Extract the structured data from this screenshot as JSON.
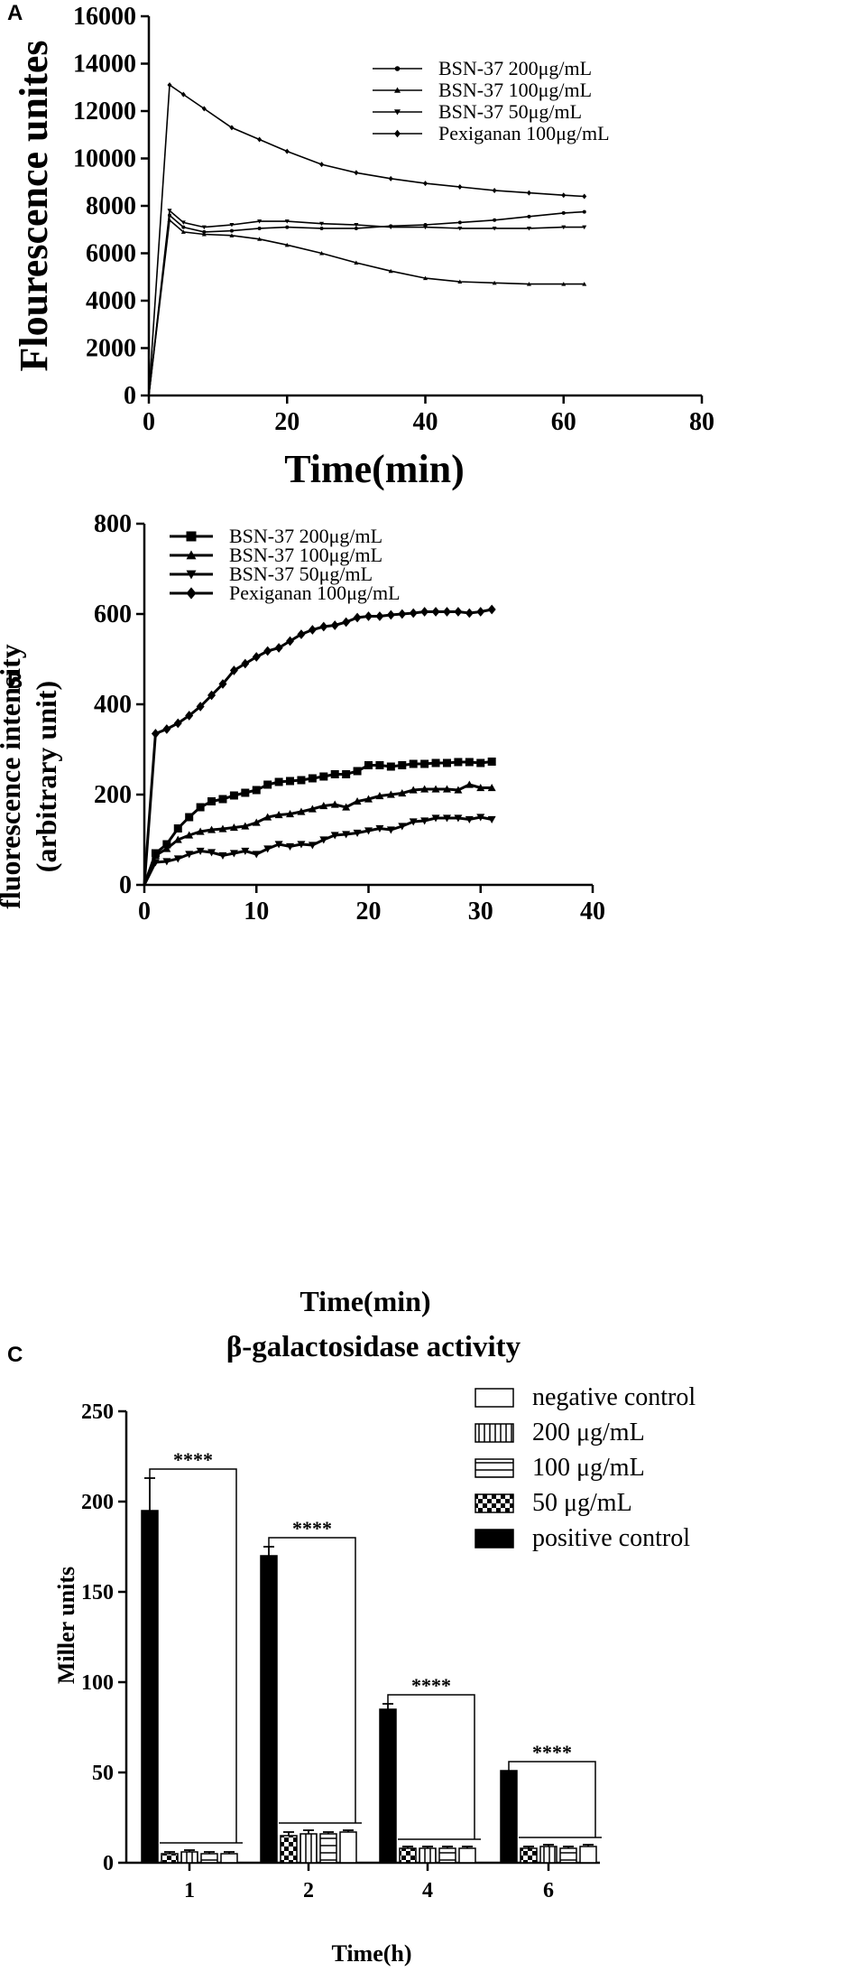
{
  "chart_data": [
    {
      "panel": "A",
      "type": "line",
      "xlabel": "Time(min)",
      "ylabel": "Flourescence  unites",
      "xlim": [
        0,
        80
      ],
      "ylim": [
        0,
        16000
      ],
      "xticks": [
        0,
        20,
        40,
        60,
        80
      ],
      "yticks": [
        0,
        2000,
        4000,
        6000,
        8000,
        10000,
        12000,
        14000,
        16000
      ],
      "legend_position": "top-right",
      "series": [
        {
          "name": "BSN-37 200μg/mL",
          "marker": "circle",
          "x": [
            0,
            3,
            5,
            8,
            12,
            16,
            20,
            25,
            30,
            35,
            40,
            45,
            50,
            55,
            60,
            63
          ],
          "values": [
            0,
            7600,
            7100,
            6900,
            6950,
            7050,
            7100,
            7050,
            7050,
            7150,
            7200,
            7300,
            7400,
            7550,
            7700,
            7750
          ]
        },
        {
          "name": "BSN-37 100μg/mL",
          "marker": "triangle",
          "x": [
            0,
            3,
            5,
            8,
            12,
            16,
            20,
            25,
            30,
            35,
            40,
            45,
            50,
            55,
            60,
            63
          ],
          "values": [
            0,
            7400,
            6900,
            6800,
            6750,
            6600,
            6350,
            6000,
            5600,
            5250,
            4950,
            4800,
            4750,
            4700,
            4700,
            4700
          ]
        },
        {
          "name": "BSN-37 50μg/mL",
          "marker": "triangle-down",
          "x": [
            0,
            3,
            5,
            8,
            12,
            16,
            20,
            25,
            30,
            35,
            40,
            45,
            50,
            55,
            60,
            63
          ],
          "values": [
            0,
            7800,
            7300,
            7100,
            7200,
            7350,
            7350,
            7250,
            7200,
            7100,
            7100,
            7050,
            7050,
            7050,
            7100,
            7100
          ]
        },
        {
          "name": "Pexiganan 100μg/mL",
          "marker": "diamond",
          "x": [
            0,
            3,
            5,
            8,
            12,
            16,
            20,
            25,
            30,
            35,
            40,
            45,
            50,
            55,
            60,
            63
          ],
          "values": [
            0,
            13100,
            12700,
            12100,
            11300,
            10800,
            10300,
            9750,
            9400,
            9150,
            8950,
            8800,
            8650,
            8550,
            8450,
            8400
          ]
        }
      ]
    },
    {
      "panel": "B",
      "type": "line",
      "xlabel": "Time(min)",
      "ylabel_line1": "fluorescence  intensity",
      "ylabel_line2": "(arbitrary  unit)",
      "xlim": [
        0,
        40
      ],
      "ylim": [
        0,
        800
      ],
      "xticks": [
        0,
        10,
        20,
        30,
        40
      ],
      "yticks": [
        0,
        200,
        400,
        600,
        800
      ],
      "legend_position": "top-left",
      "series": [
        {
          "name": "BSN-37 200μg/mL",
          "marker": "square",
          "x": [
            0,
            1,
            2,
            3,
            4,
            5,
            6,
            7,
            8,
            9,
            10,
            11,
            12,
            13,
            14,
            15,
            16,
            17,
            18,
            19,
            20,
            21,
            22,
            23,
            24,
            25,
            26,
            27,
            28,
            29,
            30,
            31
          ],
          "values": [
            0,
            70,
            90,
            125,
            150,
            172,
            185,
            190,
            198,
            204,
            210,
            222,
            228,
            230,
            232,
            236,
            240,
            245,
            245,
            252,
            265,
            265,
            262,
            265,
            268,
            268,
            270,
            270,
            272,
            272,
            270,
            273
          ]
        },
        {
          "name": "BSN-37 100μg/mL",
          "marker": "triangle",
          "x": [
            0,
            1,
            2,
            3,
            4,
            5,
            6,
            7,
            8,
            9,
            10,
            11,
            12,
            13,
            14,
            15,
            16,
            17,
            18,
            19,
            20,
            21,
            22,
            23,
            24,
            25,
            26,
            27,
            28,
            29,
            30,
            31
          ],
          "values": [
            0,
            65,
            80,
            100,
            110,
            118,
            122,
            124,
            127,
            130,
            138,
            150,
            155,
            157,
            162,
            168,
            175,
            178,
            172,
            185,
            190,
            197,
            200,
            203,
            210,
            212,
            212,
            212,
            210,
            222,
            215,
            215
          ]
        },
        {
          "name": "BSN-37 50μg/mL",
          "marker": "triangle-down",
          "x": [
            0,
            1,
            2,
            3,
            4,
            5,
            6,
            7,
            8,
            9,
            10,
            11,
            12,
            13,
            14,
            15,
            16,
            17,
            18,
            19,
            20,
            21,
            22,
            23,
            24,
            25,
            26,
            27,
            28,
            29,
            30,
            31
          ],
          "values": [
            0,
            50,
            52,
            58,
            68,
            75,
            72,
            65,
            70,
            75,
            68,
            80,
            90,
            85,
            90,
            88,
            100,
            110,
            112,
            115,
            120,
            125,
            122,
            130,
            140,
            142,
            148,
            148,
            148,
            145,
            150,
            145
          ]
        },
        {
          "name": "Pexiganan 100μg/mL",
          "marker": "diamond",
          "x": [
            0,
            1,
            2,
            3,
            4,
            5,
            6,
            7,
            8,
            9,
            10,
            11,
            12,
            13,
            14,
            15,
            16,
            17,
            18,
            19,
            20,
            21,
            22,
            23,
            24,
            25,
            26,
            27,
            28,
            29,
            30,
            31
          ],
          "values": [
            0,
            335,
            345,
            358,
            375,
            395,
            420,
            445,
            475,
            490,
            505,
            518,
            525,
            540,
            555,
            565,
            572,
            575,
            582,
            592,
            595,
            595,
            598,
            600,
            602,
            605,
            605,
            605,
            605,
            602,
            605,
            610
          ]
        }
      ]
    },
    {
      "panel": "C",
      "type": "bar",
      "title": "β-galactosidase activity",
      "xlabel": "Time(h)",
      "ylabel": "Miller units",
      "ylim": [
        0,
        250
      ],
      "yticks": [
        0,
        50,
        100,
        150,
        200,
        250
      ],
      "categories": [
        "1",
        "2",
        "4",
        "6"
      ],
      "legend_position": "top-right",
      "significance_label": "****",
      "series": [
        {
          "name": "positive control",
          "pattern": "solid",
          "values": [
            195,
            170,
            85,
            51
          ],
          "errors": [
            18,
            5,
            3,
            0
          ]
        },
        {
          "name": "50 μg/mL",
          "pattern": "checker",
          "values": [
            5,
            15,
            8,
            8
          ],
          "errors": [
            1,
            2,
            1,
            1
          ]
        },
        {
          "name": "200 μg/mL",
          "pattern": "vertical",
          "values": [
            6,
            16,
            8,
            9
          ],
          "errors": [
            1,
            2,
            1,
            1
          ]
        },
        {
          "name": "100 μg/mL",
          "pattern": "horizontal",
          "values": [
            5,
            16,
            8,
            8
          ],
          "errors": [
            1,
            1,
            1,
            1
          ]
        },
        {
          "name": "negative control",
          "pattern": "empty",
          "values": [
            5,
            17,
            8,
            9
          ],
          "errors": [
            1,
            1,
            1,
            1
          ]
        }
      ],
      "legend_order": [
        "negative control",
        "200 μg/mL",
        "100 μg/mL",
        "50 μg/mL",
        "positive control"
      ]
    }
  ],
  "panel_labels": [
    "A",
    "B",
    "C"
  ]
}
